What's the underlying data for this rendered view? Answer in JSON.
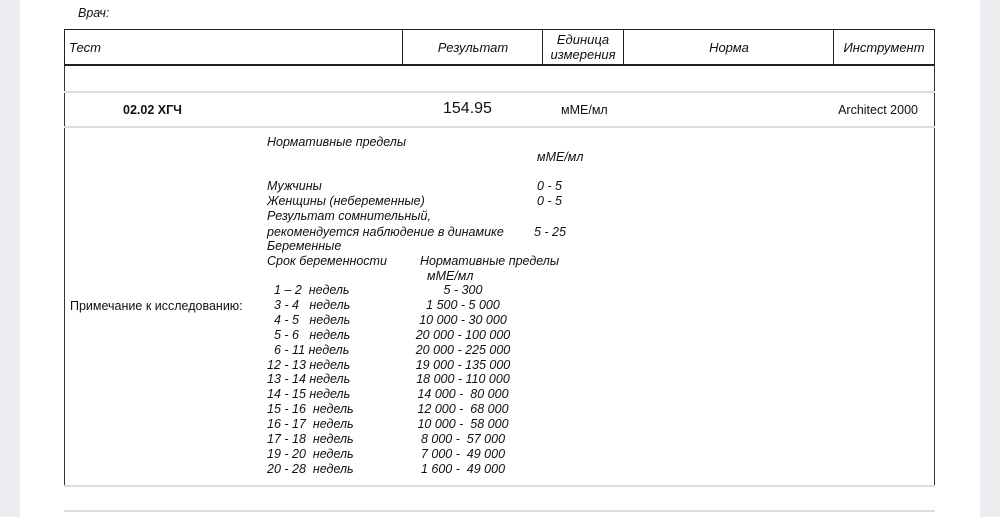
{
  "doctor_label": "Врач:",
  "header": {
    "test": "Тест",
    "result": "Результат",
    "unit": "Единица измерения",
    "norm": "Норма",
    "instrument": "Инструмент"
  },
  "row": {
    "test": "02.02 ХГЧ",
    "result": "154.95",
    "unit": "мМЕ/мл",
    "norm": "",
    "instrument": "Architect 2000"
  },
  "note": {
    "label": "Примечание к исследованию:",
    "title": "Нормативные пределы",
    "unit": "мМЕ/мл",
    "ranges": [
      {
        "label": "Мужчины",
        "value": "0 - 5"
      },
      {
        "label": "Женщины (небеременные)",
        "value": "0 - 5"
      },
      {
        "label": "Результат сомнительный,",
        "value": ""
      },
      {
        "label": "рекомендуется наблюдение в динамике",
        "value": "5 - 25"
      }
    ],
    "pregnant": "Беременные",
    "term_header": "Срок беременности",
    "limits_header": "Нормативные пределы",
    "limits_unit": "мМЕ/мл",
    "weeks": [
      {
        "term": "1 – 2  недель",
        "range": "5 - 300"
      },
      {
        "term": "3 - 4   недель",
        "range": "1 500 - 5 000"
      },
      {
        "term": "4 - 5   недель",
        "range": "10 000 - 30 000"
      },
      {
        "term": "5 - 6   недель",
        "range": "20 000 - 100 000"
      },
      {
        "term": "6 - 11 недель",
        "range": "20 000 - 225 000"
      },
      {
        "term": "12 - 13 недель",
        "range": "19 000 - 135 000"
      },
      {
        "term": "13 - 14 недель",
        "range": "18 000 - 110 000"
      },
      {
        "term": "14 - 15 недель",
        "range": "14 000 -  80 000"
      },
      {
        "term": "15 - 16  недель",
        "range": "12 000 -  68 000"
      },
      {
        "term": "16 - 17  недель",
        "range": "10 000 -  58 000"
      },
      {
        "term": "17 - 18  недель",
        "range": "8 000 -  57 000"
      },
      {
        "term": "19 - 20  недель",
        "range": "7 000 -  49 000"
      },
      {
        "term": "20 - 28  недель",
        "range": "1 600 -  49 000"
      }
    ]
  }
}
